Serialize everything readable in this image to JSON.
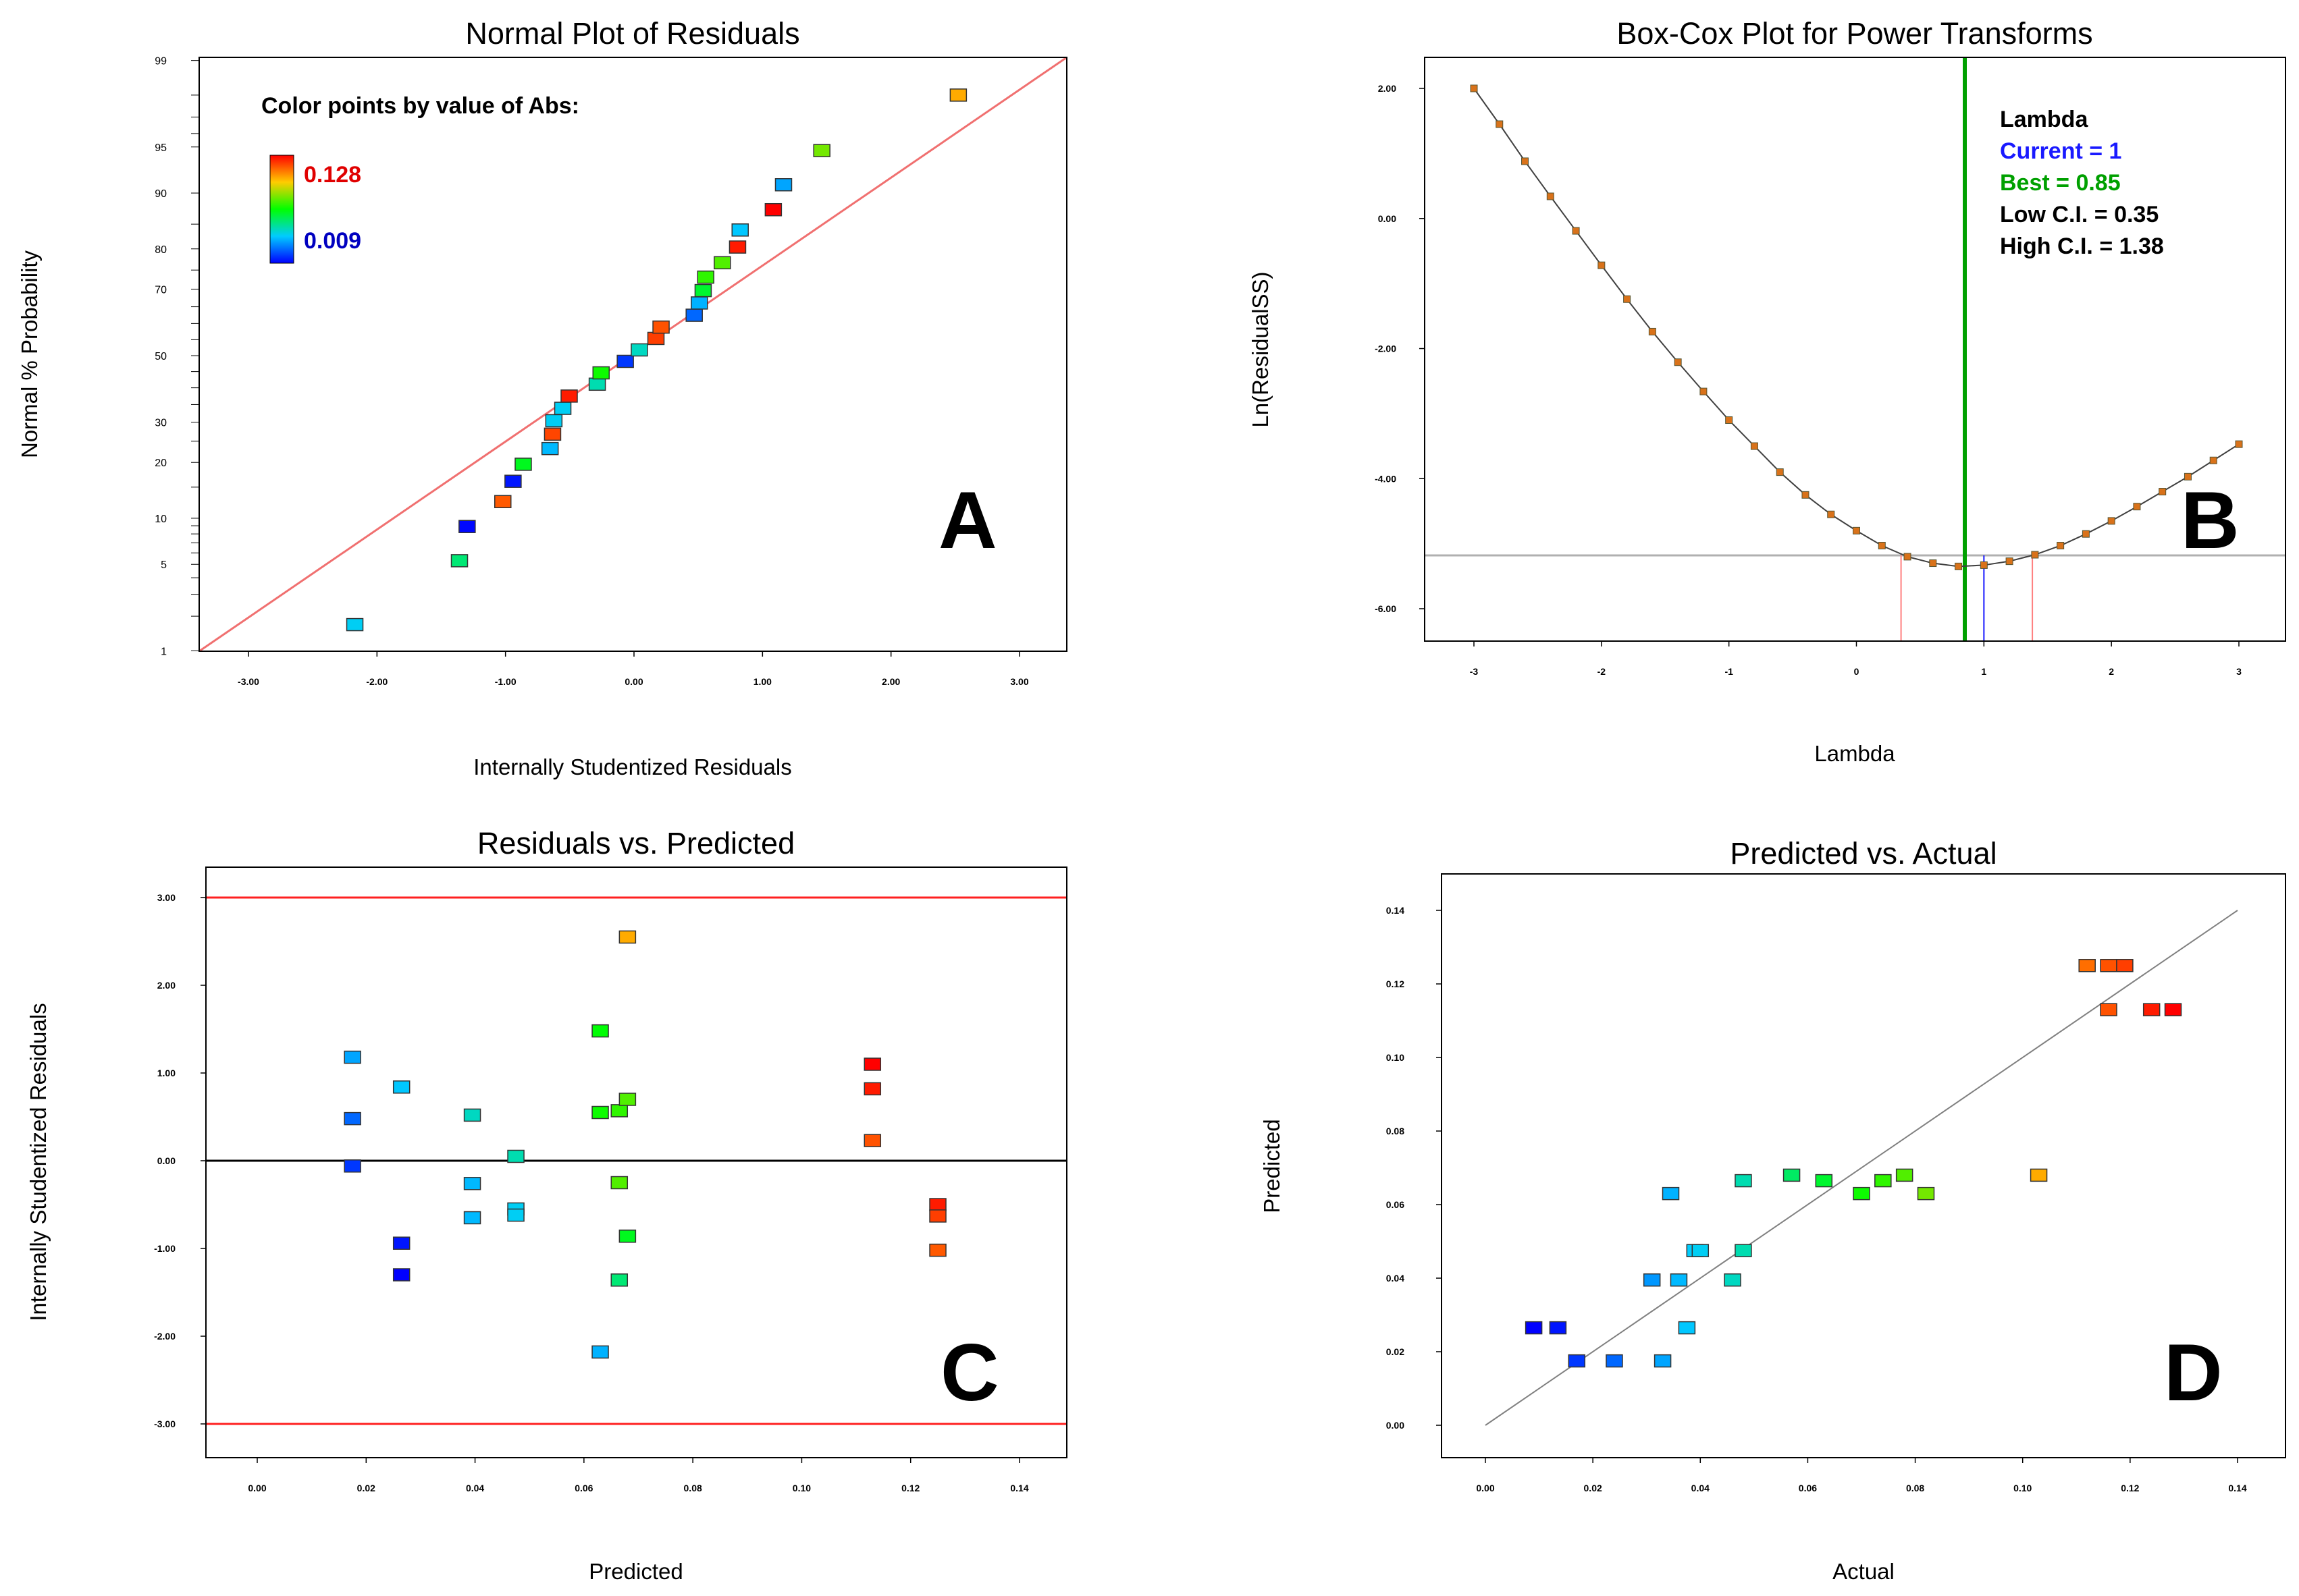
{
  "colors": {
    "ref_line_red": "#f07070",
    "limit_red": "#ff2020",
    "zero_black": "#000000",
    "box_cox_curve": "#404040",
    "box_cox_marker": "#d9721a",
    "current_blue": "#1a1aff",
    "best_green": "#00a000",
    "ci_red": "#ff8080",
    "min_gray": "#b0b0b0",
    "diag_gray": "#808080"
  },
  "chart_data": [
    {
      "panel": "A",
      "type": "scatter",
      "title": "Normal Plot of Residuals",
      "xlabel": "Internally Studentized Residuals",
      "ylabel": "Normal % Probability",
      "xlim": [
        -3.4,
        3.4
      ],
      "x_ticks": [
        "-3.00",
        "-2.00",
        "-1.00",
        "0.00",
        "1.00",
        "2.00",
        "3.00"
      ],
      "y_ticks": [
        "1",
        "5",
        "10",
        "20",
        "30",
        "50",
        "70",
        "80",
        "90",
        "95",
        "99"
      ],
      "legend": {
        "title": "Color points by value of Abs:",
        "max": "0.128",
        "min": "0.009"
      },
      "points": [
        {
          "x": -2.18,
          "p": 1.7,
          "c": 0.04
        },
        {
          "x": -1.36,
          "p": 5.3,
          "c": 0.055
        },
        {
          "x": -1.3,
          "p": 8.9,
          "c": 0.01
        },
        {
          "x": -1.02,
          "p": 12.5,
          "c": 0.115
        },
        {
          "x": -0.94,
          "p": 16.1,
          "c": 0.012
        },
        {
          "x": -0.86,
          "p": 19.6,
          "c": 0.065
        },
        {
          "x": -0.65,
          "p": 23.2,
          "c": 0.036
        },
        {
          "x": -0.63,
          "p": 26.8,
          "c": 0.118
        },
        {
          "x": -0.62,
          "p": 30.4,
          "c": 0.04
        },
        {
          "x": -0.55,
          "p": 33.9,
          "c": 0.04
        },
        {
          "x": -0.5,
          "p": 37.5,
          "c": 0.124
        },
        {
          "x": -0.28,
          "p": 41.1,
          "c": 0.048
        },
        {
          "x": -0.25,
          "p": 44.6,
          "c": 0.07
        },
        {
          "x": -0.06,
          "p": 48.2,
          "c": 0.017
        },
        {
          "x": 0.05,
          "p": 51.8,
          "c": 0.046
        },
        {
          "x": 0.18,
          "p": 55.4,
          "c": 0.119
        },
        {
          "x": 0.22,
          "p": 58.9,
          "c": 0.116
        },
        {
          "x": 0.48,
          "p": 62.5,
          "c": 0.024
        },
        {
          "x": 0.52,
          "p": 66.1,
          "c": 0.035
        },
        {
          "x": 0.55,
          "p": 69.6,
          "c": 0.063
        },
        {
          "x": 0.57,
          "p": 73.2,
          "c": 0.074
        },
        {
          "x": 0.7,
          "p": 76.8,
          "c": 0.078
        },
        {
          "x": 0.82,
          "p": 80.4,
          "c": 0.124
        },
        {
          "x": 0.84,
          "p": 83.9,
          "c": 0.038
        },
        {
          "x": 1.1,
          "p": 87.5,
          "c": 0.128
        },
        {
          "x": 1.18,
          "p": 91.1,
          "c": 0.033
        },
        {
          "x": 1.48,
          "p": 94.7,
          "c": 0.082
        },
        {
          "x": 2.55,
          "p": 98.0,
          "c": 0.103
        }
      ]
    },
    {
      "panel": "B",
      "type": "line",
      "title": "Box-Cox Plot for Power Transforms",
      "xlabel": "Lambda",
      "ylabel": "Ln(ResidualSS)",
      "xlim": [
        -3.3,
        3.3
      ],
      "ylim": [
        -6.5,
        2.5
      ],
      "x_ticks": [
        "-3",
        "-2",
        "-1",
        "0",
        "1",
        "2",
        "3"
      ],
      "y_ticks": [
        "2.00",
        "0.00",
        "-2.00",
        "-4.00",
        "-6.00"
      ],
      "min_line_y": -5.18,
      "lambda_current": 1,
      "lambda_best": 0.85,
      "ci_low": 0.35,
      "ci_high": 1.38,
      "legend": {
        "title": "Lambda",
        "current": "Current = 1",
        "best": "Best = 0.85",
        "low": "Low C.I. = 0.35",
        "high": "High C.I. = 1.38"
      },
      "curve": [
        [
          -3.0,
          2.0
        ],
        [
          -2.8,
          1.45
        ],
        [
          -2.6,
          0.88
        ],
        [
          -2.4,
          0.34
        ],
        [
          -2.2,
          -0.19
        ],
        [
          -2.0,
          -0.72
        ],
        [
          -1.8,
          -1.24
        ],
        [
          -1.6,
          -1.74
        ],
        [
          -1.4,
          -2.21
        ],
        [
          -1.2,
          -2.66
        ],
        [
          -1.0,
          -3.1
        ],
        [
          -0.8,
          -3.5
        ],
        [
          -0.6,
          -3.9
        ],
        [
          -0.4,
          -4.25
        ],
        [
          -0.2,
          -4.55
        ],
        [
          0.0,
          -4.8
        ],
        [
          0.2,
          -5.03
        ],
        [
          0.4,
          -5.2
        ],
        [
          0.6,
          -5.3
        ],
        [
          0.8,
          -5.35
        ],
        [
          1.0,
          -5.33
        ],
        [
          1.2,
          -5.27
        ],
        [
          1.4,
          -5.17
        ],
        [
          1.6,
          -5.03
        ],
        [
          1.8,
          -4.85
        ],
        [
          2.0,
          -4.65
        ],
        [
          2.2,
          -4.43
        ],
        [
          2.4,
          -4.2
        ],
        [
          2.6,
          -3.97
        ],
        [
          2.8,
          -3.72
        ],
        [
          3.0,
          -3.47
        ]
      ]
    },
    {
      "panel": "C",
      "type": "scatter",
      "title": "Residuals vs. Predicted",
      "xlabel": "Predicted",
      "ylabel": "Internally Studentized Residuals",
      "xlim": [
        -0.01,
        0.15
      ],
      "ylim": [
        -3.4,
        3.4
      ],
      "x_ticks": [
        "0.00",
        "0.02",
        "0.04",
        "0.06",
        "0.08",
        "0.10",
        "0.12",
        "0.14"
      ],
      "y_ticks": [
        "3.00",
        "2.00",
        "1.00",
        "0.00",
        "-1.00",
        "-2.00",
        "-3.00"
      ],
      "limit_lines": [
        3.0,
        -3.0
      ],
      "points": [
        {
          "x": 0.0175,
          "y": 1.18,
          "c": 0.033
        },
        {
          "x": 0.0175,
          "y": 0.48,
          "c": 0.024
        },
        {
          "x": 0.0175,
          "y": -0.06,
          "c": 0.017
        },
        {
          "x": 0.0265,
          "y": 0.84,
          "c": 0.038
        },
        {
          "x": 0.0265,
          "y": -0.94,
          "c": 0.012
        },
        {
          "x": 0.0265,
          "y": -1.3,
          "c": 0.009
        },
        {
          "x": 0.0395,
          "y": 0.52,
          "c": 0.046
        },
        {
          "x": 0.0395,
          "y": -0.26,
          "c": 0.036
        },
        {
          "x": 0.0395,
          "y": -0.65,
          "c": 0.036
        },
        {
          "x": 0.0475,
          "y": 0.05,
          "c": 0.048
        },
        {
          "x": 0.0475,
          "y": -0.55,
          "c": 0.04
        },
        {
          "x": 0.0475,
          "y": -0.62,
          "c": 0.04
        },
        {
          "x": 0.063,
          "y": 1.48,
          "c": 0.068
        },
        {
          "x": 0.063,
          "y": 0.55,
          "c": 0.07
        },
        {
          "x": 0.063,
          "y": -2.18,
          "c": 0.035
        },
        {
          "x": 0.0665,
          "y": 0.57,
          "c": 0.074
        },
        {
          "x": 0.0665,
          "y": -0.25,
          "c": 0.078
        },
        {
          "x": 0.0665,
          "y": -1.36,
          "c": 0.055
        },
        {
          "x": 0.068,
          "y": 0.7,
          "c": 0.078
        },
        {
          "x": 0.068,
          "y": -0.86,
          "c": 0.065
        },
        {
          "x": 0.068,
          "y": 2.55,
          "c": 0.103
        },
        {
          "x": 0.113,
          "y": 1.1,
          "c": 0.128
        },
        {
          "x": 0.113,
          "y": 0.82,
          "c": 0.124
        },
        {
          "x": 0.113,
          "y": 0.23,
          "c": 0.116
        },
        {
          "x": 0.125,
          "y": -0.5,
          "c": 0.124
        },
        {
          "x": 0.125,
          "y": -0.63,
          "c": 0.119
        },
        {
          "x": 0.125,
          "y": -1.02,
          "c": 0.115
        }
      ]
    },
    {
      "panel": "D",
      "type": "scatter",
      "title": "Predicted vs. Actual",
      "xlabel": "Actual",
      "ylabel": "Predicted",
      "xlim": [
        -0.009,
        0.149
      ],
      "ylim": [
        -0.009,
        0.149
      ],
      "x_ticks": [
        "0.00",
        "0.02",
        "0.04",
        "0.06",
        "0.08",
        "0.10",
        "0.12",
        "0.14"
      ],
      "y_ticks": [
        "0.14",
        "0.12",
        "0.10",
        "0.08",
        "0.06",
        "0.04",
        "0.02",
        "0.00"
      ],
      "diagonal": [
        0.0,
        0.14
      ],
      "points": [
        {
          "x": 0.009,
          "y": 0.0265,
          "c": 0.009
        },
        {
          "x": 0.0135,
          "y": 0.0265,
          "c": 0.012
        },
        {
          "x": 0.017,
          "y": 0.0175,
          "c": 0.017
        },
        {
          "x": 0.024,
          "y": 0.0175,
          "c": 0.024
        },
        {
          "x": 0.031,
          "y": 0.0395,
          "c": 0.031
        },
        {
          "x": 0.033,
          "y": 0.0175,
          "c": 0.033
        },
        {
          "x": 0.0345,
          "y": 0.063,
          "c": 0.035
        },
        {
          "x": 0.036,
          "y": 0.0395,
          "c": 0.036
        },
        {
          "x": 0.0375,
          "y": 0.0265,
          "c": 0.038
        },
        {
          "x": 0.039,
          "y": 0.0475,
          "c": 0.039
        },
        {
          "x": 0.04,
          "y": 0.0475,
          "c": 0.04
        },
        {
          "x": 0.046,
          "y": 0.0395,
          "c": 0.046
        },
        {
          "x": 0.048,
          "y": 0.0665,
          "c": 0.048
        },
        {
          "x": 0.048,
          "y": 0.0475,
          "c": 0.048
        },
        {
          "x": 0.057,
          "y": 0.068,
          "c": 0.057
        },
        {
          "x": 0.063,
          "y": 0.0665,
          "c": 0.063
        },
        {
          "x": 0.07,
          "y": 0.063,
          "c": 0.07
        },
        {
          "x": 0.074,
          "y": 0.0665,
          "c": 0.074
        },
        {
          "x": 0.078,
          "y": 0.068,
          "c": 0.078
        },
        {
          "x": 0.082,
          "y": 0.063,
          "c": 0.082
        },
        {
          "x": 0.103,
          "y": 0.068,
          "c": 0.103
        },
        {
          "x": 0.112,
          "y": 0.125,
          "c": 0.112
        },
        {
          "x": 0.116,
          "y": 0.125,
          "c": 0.116
        },
        {
          "x": 0.116,
          "y": 0.113,
          "c": 0.116
        },
        {
          "x": 0.119,
          "y": 0.125,
          "c": 0.119
        },
        {
          "x": 0.124,
          "y": 0.113,
          "c": 0.124
        },
        {
          "x": 0.128,
          "y": 0.113,
          "c": 0.128
        }
      ]
    }
  ]
}
